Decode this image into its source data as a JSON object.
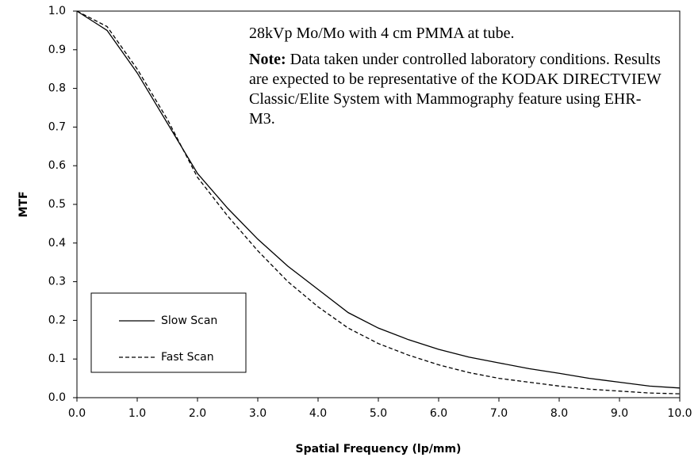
{
  "chart_data": {
    "type": "line",
    "x_label": "Spatial Frequency (lp/mm)",
    "y_label": "MTF",
    "annotation": {
      "line1": "28kVp Mo/Mo with 4 cm PMMA at tube.",
      "note_label": "Note:",
      "note_text": "Data taken under controlled laboratory conditions. Results are expected to be representative of the KODAK DIRECTVIEW Classic/Elite System with Mammography feature using EHR-M3."
    },
    "x": [
      0,
      0.5,
      1,
      1.5,
      2,
      2.5,
      3,
      3.5,
      4,
      4.5,
      5,
      5.5,
      6,
      6.5,
      7,
      7.5,
      8,
      8.5,
      9,
      9.5,
      10
    ],
    "series": [
      {
        "name": "Slow Scan",
        "color": "#000000",
        "dash": "solid",
        "values": [
          1.0,
          0.95,
          0.84,
          0.71,
          0.58,
          0.49,
          0.41,
          0.34,
          0.28,
          0.22,
          0.18,
          0.15,
          0.125,
          0.105,
          0.09,
          0.075,
          0.063,
          0.05,
          0.04,
          0.03,
          0.025
        ]
      },
      {
        "name": "Fast Scan",
        "color": "#000000",
        "dash": "dashed",
        "values": [
          1.0,
          0.96,
          0.85,
          0.72,
          0.57,
          0.47,
          0.38,
          0.3,
          0.235,
          0.18,
          0.14,
          0.11,
          0.085,
          0.065,
          0.05,
          0.04,
          0.03,
          0.022,
          0.017,
          0.012,
          0.01
        ]
      }
    ],
    "xlim": [
      0,
      10
    ],
    "ylim": [
      0,
      1
    ],
    "xticks": [
      {
        "value": 0,
        "label": "0.0"
      },
      {
        "value": 1,
        "label": "1.0"
      },
      {
        "value": 2,
        "label": "2.0"
      },
      {
        "value": 3,
        "label": "3.0"
      },
      {
        "value": 4,
        "label": "4.0"
      },
      {
        "value": 5,
        "label": "5.0"
      },
      {
        "value": 6,
        "label": "6.0"
      },
      {
        "value": 7,
        "label": "7.0"
      },
      {
        "value": 8,
        "label": "8.0"
      },
      {
        "value": 9,
        "label": "9.0"
      },
      {
        "value": 10,
        "label": "10.0"
      }
    ],
    "yticks": [
      {
        "value": 0,
        "label": "0.0"
      },
      0.1,
      0.2,
      0.3,
      0.4,
      0.5,
      0.6,
      0.7,
      0.8,
      0.9,
      {
        "value": 1,
        "label": "1.0"
      }
    ],
    "grid": false,
    "legend": "bottom-left"
  }
}
